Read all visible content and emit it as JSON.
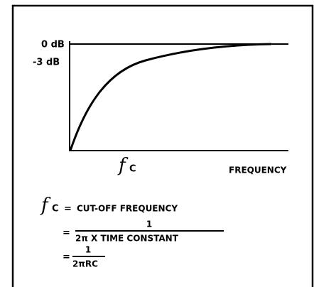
{
  "axis": {
    "top_label": "0 dB",
    "mid_label": "-3 dB",
    "x_label": "FREQUENCY",
    "fc_symbol": "f",
    "fc_subscript": "C"
  },
  "formula": {
    "symbol": "f",
    "subscript": "C",
    "eq1": "=",
    "definition": "CUT-OFF FREQUENCY",
    "eq2": "=",
    "numerator1": "1",
    "denominator1": "2π X TIME CONSTANT",
    "eq3": "=",
    "numerator2": "1",
    "denominator2": "2πRC"
  }
}
